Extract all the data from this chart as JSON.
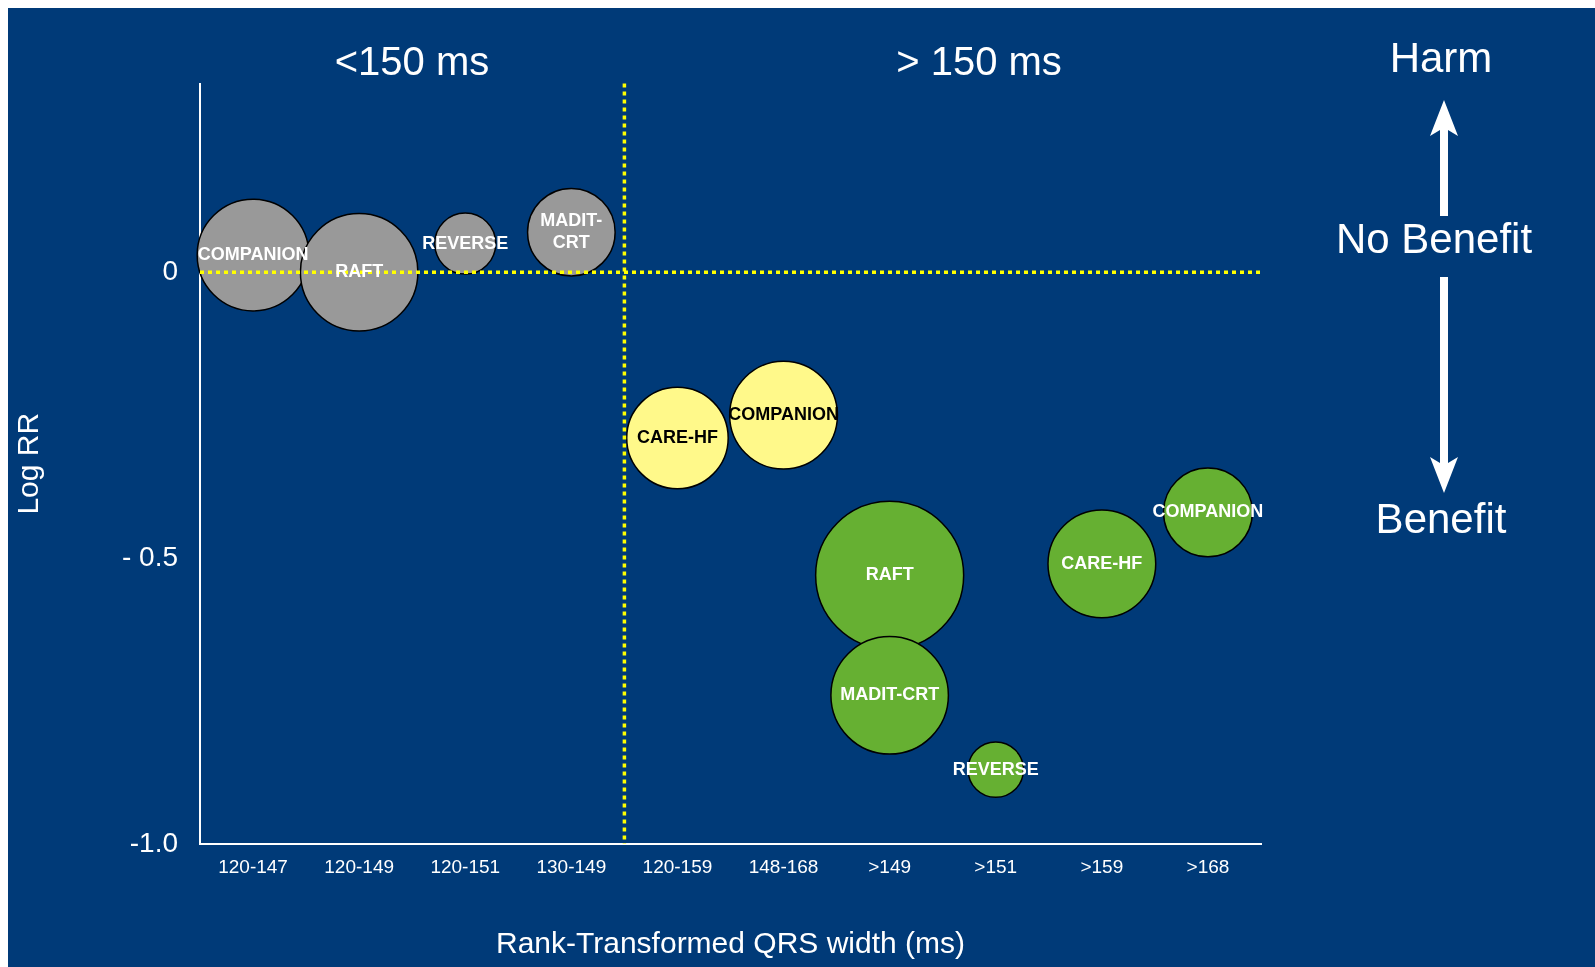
{
  "chart_data": {
    "type": "bubble",
    "xlabel": "Rank-Transformed QRS width (ms)",
    "ylabel": "Log RR",
    "categories": [
      "120-147",
      "120-149",
      "120-151",
      "130-149",
      "120-159",
      "148-168",
      ">149",
      ">151",
      ">159",
      ">168"
    ],
    "series": [
      {
        "color": "#999999",
        "x": [
          "120-147",
          "120-149",
          "120-151",
          "130-149"
        ],
        "values": [
          0.03,
          0.0,
          0.05,
          0.07
        ],
        "sizes": [
          0.57,
          0.63,
          0.17,
          0.35
        ],
        "value_labels": [
          "COMPANION",
          "RAFT",
          "REVERSE",
          "MADIT-CRT"
        ]
      },
      {
        "color": "#fff98a",
        "x": [
          "120-159",
          "148-168"
        ],
        "values": [
          -0.29,
          -0.25
        ],
        "sizes": [
          0.47,
          0.53
        ],
        "value_labels": [
          "CARE-HF",
          "COMPANION"
        ]
      },
      {
        "color": "#66b032",
        "x": [
          ">149",
          ">149",
          ">151",
          ">159",
          ">168"
        ],
        "values": [
          -0.53,
          -0.74,
          -0.87,
          -0.51,
          -0.42
        ],
        "sizes": [
          1,
          0.63,
          0.14,
          0.53,
          0.36
        ],
        "value_labels": [
          "RAFT",
          "MADIT-CRT",
          "REVERSE",
          "CARE-HF",
          "COMPANION"
        ]
      }
    ],
    "ylim": [
      -1.0,
      0.33
    ],
    "yticks": [
      {
        "value": 0,
        "label": "0"
      },
      {
        "value": -0.5,
        "label": "- 0.5"
      },
      {
        "value": -1.0,
        "label": "-1.0"
      }
    ],
    "ref_lines": [
      {
        "axis": "y",
        "value": 0,
        "color": "#ffff00",
        "line_style": "dotted"
      }
    ],
    "annotations": [
      "<150 ms",
      "> 150 ms",
      "Harm",
      "No Benefit",
      "Benefit"
    ],
    "grid": false,
    "legend": false
  }
}
